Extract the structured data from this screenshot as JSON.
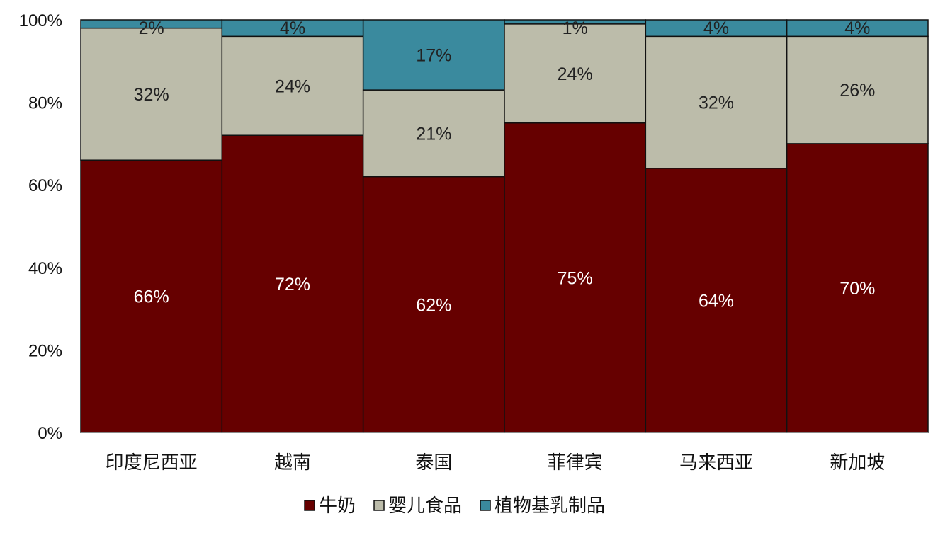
{
  "chart_data": {
    "type": "bar",
    "stacked": true,
    "normalized": true,
    "categories": [
      "印度尼西亚",
      "越南",
      "泰国",
      "菲律宾",
      "马来西亚",
      "新加坡"
    ],
    "series": [
      {
        "name": "牛奶",
        "values": [
          66,
          72,
          62,
          75,
          64,
          70
        ],
        "labels": [
          "66%",
          "72%",
          "62%",
          "75%",
          "64%",
          "70%"
        ],
        "color": "#660000",
        "label_color": "#ffffff"
      },
      {
        "name": "婴儿食品",
        "values": [
          32,
          24,
          21,
          24,
          32,
          26
        ],
        "labels": [
          "32%",
          "24%",
          "21%",
          "24%",
          "32%",
          "26%"
        ],
        "color": "#bcbcaa",
        "label_color": "#222222"
      },
      {
        "name": "植物基乳制品",
        "values": [
          2,
          4,
          17,
          1,
          4,
          4
        ],
        "labels": [
          "2%",
          "4%",
          "17%",
          "1%",
          "4%",
          "4%"
        ],
        "color": "#3a8a9e",
        "label_color": "#222222"
      }
    ],
    "yticks": [
      "0%",
      "20%",
      "40%",
      "60%",
      "80%",
      "100%"
    ],
    "ylim": [
      0,
      100
    ],
    "grid": false,
    "legend_position": "bottom"
  }
}
